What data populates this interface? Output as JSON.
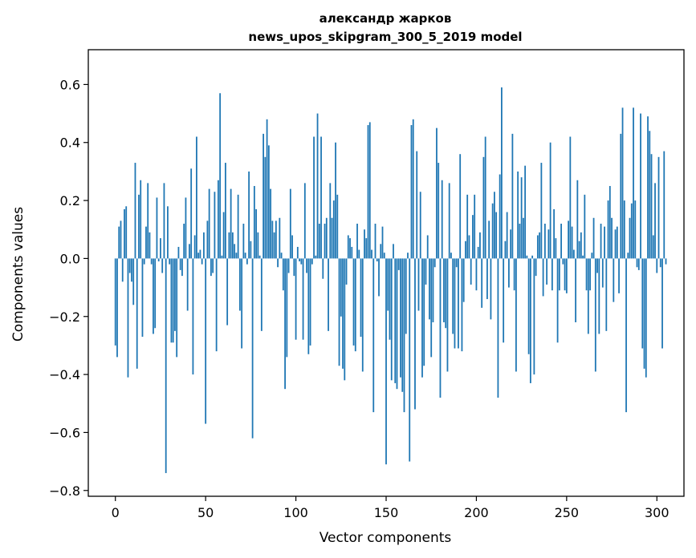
{
  "chart_data": {
    "type": "bar",
    "title_line1": "александр жарков",
    "title_line2": "news_upos_skipgram_300_5_2019 model",
    "xlabel": "Vector components",
    "ylabel": "Components values",
    "xlim": [
      -15,
      315
    ],
    "ylim": [
      -0.82,
      0.72
    ],
    "xticks": [
      0,
      50,
      100,
      150,
      200,
      250,
      300
    ],
    "xtick_labels": [
      "0",
      "50",
      "100",
      "150",
      "200",
      "250",
      "300"
    ],
    "yticks": [
      -0.8,
      -0.6,
      -0.4,
      -0.2,
      0.0,
      0.2,
      0.4,
      0.6
    ],
    "ytick_labels": [
      "−0.8",
      "−0.6",
      "−0.4",
      "−0.2",
      "0.0",
      "0.2",
      "0.4",
      "0.6"
    ],
    "bar_color": "#1f77b4",
    "grid": false,
    "values": [
      -0.3,
      -0.34,
      0.11,
      0.13,
      -0.08,
      0.17,
      0.18,
      -0.41,
      -0.05,
      -0.08,
      -0.16,
      0.33,
      -0.38,
      0.22,
      0.27,
      -0.27,
      -0.02,
      0.11,
      0.26,
      0.09,
      -0.02,
      -0.26,
      -0.24,
      0.21,
      -0.01,
      0.07,
      -0.05,
      0.26,
      -0.74,
      0.18,
      -0.02,
      -0.29,
      -0.29,
      -0.25,
      -0.34,
      0.04,
      -0.04,
      -0.06,
      0.12,
      0.21,
      -0.18,
      0.05,
      0.31,
      -0.4,
      0.08,
      0.42,
      0.02,
      0.03,
      -0.02,
      0.09,
      -0.57,
      0.13,
      0.24,
      -0.06,
      -0.05,
      0.23,
      -0.32,
      0.27,
      0.57,
      0.01,
      0.16,
      0.33,
      -0.23,
      0.09,
      0.24,
      0.09,
      0.05,
      0.02,
      0.22,
      -0.18,
      -0.31,
      0.12,
      0.02,
      -0.02,
      0.3,
      0.06,
      -0.62,
      0.25,
      0.17,
      0.09,
      0.01,
      -0.25,
      0.43,
      0.35,
      0.48,
      0.39,
      0.24,
      0.13,
      0.09,
      0.13,
      -0.03,
      0.14,
      0.02,
      -0.11,
      -0.45,
      -0.34,
      -0.05,
      0.24,
      0.08,
      -0.06,
      -0.28,
      0.04,
      -0.01,
      -0.02,
      -0.28,
      0.26,
      -0.05,
      -0.33,
      -0.3,
      -0.02,
      0.42,
      0.01,
      0.5,
      0.12,
      0.42,
      -0.07,
      0.12,
      0.14,
      -0.25,
      0.26,
      0.14,
      0.2,
      0.4,
      0.22,
      -0.37,
      -0.2,
      -0.38,
      -0.42,
      -0.09,
      0.08,
      0.07,
      0.04,
      -0.3,
      -0.32,
      0.12,
      0.03,
      -0.27,
      -0.39,
      0.1,
      0.07,
      0.46,
      0.47,
      0.03,
      -0.53,
      0.12,
      -0.01,
      -0.13,
      0.05,
      0.11,
      0.02,
      -0.71,
      -0.18,
      -0.28,
      -0.42,
      0.05,
      -0.43,
      -0.45,
      -0.04,
      -0.41,
      -0.46,
      -0.53,
      -0.26,
      0.02,
      -0.7,
      0.46,
      0.48,
      -0.52,
      0.37,
      -0.18,
      0.23,
      -0.41,
      -0.37,
      -0.09,
      0.08,
      -0.21,
      -0.34,
      -0.22,
      -0.03,
      0.45,
      0.33,
      -0.48,
      0.27,
      -0.22,
      -0.24,
      -0.39,
      0.26,
      0.02,
      -0.26,
      -0.31,
      -0.03,
      -0.31,
      0.36,
      -0.32,
      -0.15,
      0.06,
      0.22,
      0.08,
      -0.09,
      0.15,
      0.22,
      -0.11,
      0.04,
      0.09,
      -0.17,
      0.35,
      0.42,
      -0.14,
      0.13,
      -0.21,
      0.19,
      0.23,
      0.16,
      -0.48,
      0.29,
      0.59,
      -0.29,
      0.06,
      0.16,
      -0.1,
      0.1,
      0.43,
      -0.11,
      -0.39,
      0.3,
      0.12,
      0.28,
      0.14,
      0.32,
      0.01,
      -0.33,
      -0.43,
      0.01,
      -0.4,
      -0.06,
      0.08,
      0.09,
      0.33,
      -0.13,
      0.12,
      -0.09,
      0.1,
      0.4,
      -0.11,
      0.17,
      0.07,
      -0.29,
      -0.11,
      0.12,
      -0.02,
      -0.11,
      -0.12,
      0.13,
      0.42,
      0.11,
      0.03,
      -0.22,
      0.27,
      0.06,
      0.09,
      0.01,
      0.22,
      -0.11,
      -0.26,
      -0.11,
      0.02,
      0.14,
      -0.39,
      -0.05,
      -0.26,
      0.12,
      -0.1,
      0.11,
      -0.25,
      0.2,
      0.25,
      0.14,
      -0.15,
      0.1,
      0.11,
      -0.12,
      0.43,
      0.52,
      0.2,
      -0.53,
      0.02,
      0.14,
      0.19,
      0.52,
      0.2,
      -0.03,
      -0.04,
      0.5,
      -0.31,
      -0.38,
      -0.41,
      0.49,
      0.44,
      0.36,
      0.08,
      0.26,
      -0.05,
      0.35,
      -0.03,
      -0.31,
      0.37,
      -0.02
    ]
  }
}
